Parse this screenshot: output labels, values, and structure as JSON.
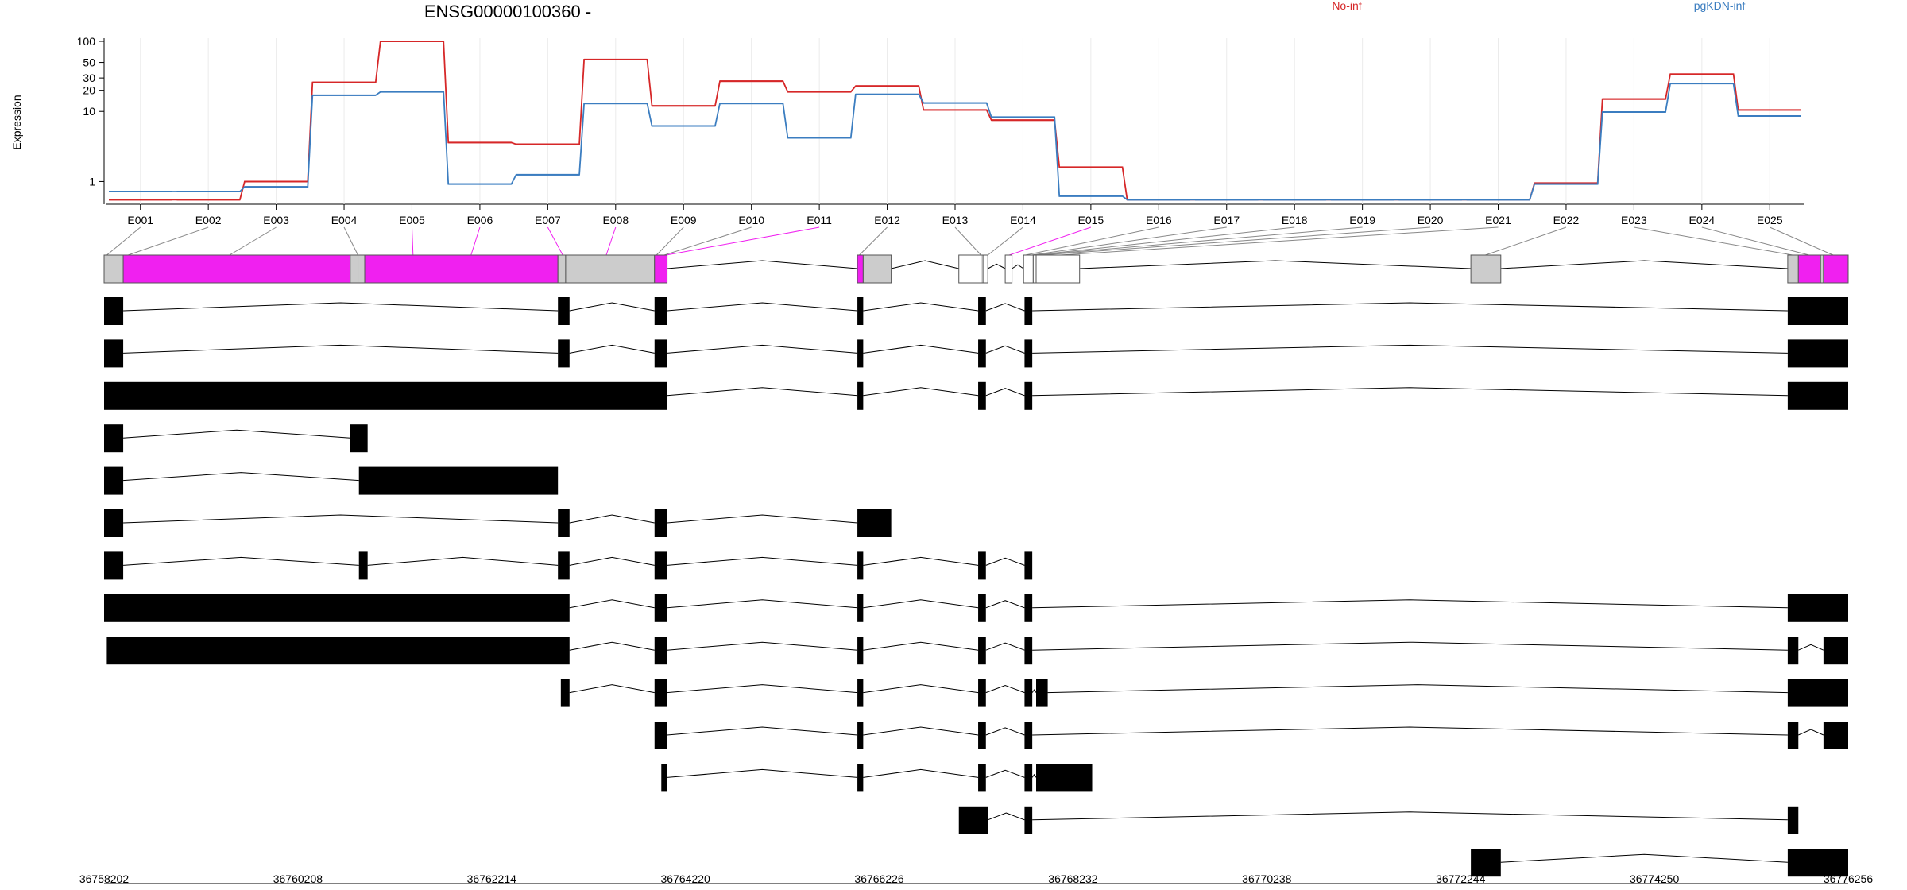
{
  "chart_data": {
    "type": "line",
    "title": "ENSG00000100360 -",
    "ylabel": "Expression",
    "y_scale": "log",
    "yticks": [
      "1",
      "10",
      "20",
      "30",
      "50",
      "100"
    ],
    "categories": [
      "E001",
      "E002",
      "E003",
      "E004",
      "E005",
      "E006",
      "E007",
      "E008",
      "E009",
      "E010",
      "E011",
      "E012",
      "E013",
      "E014",
      "E015",
      "E016",
      "E017",
      "E018",
      "E019",
      "E020",
      "E021",
      "E022",
      "E023",
      "E024",
      "E025"
    ],
    "series": [
      {
        "name": "No-inf",
        "color": "#d62728",
        "values": [
          0.55,
          0.55,
          1.0,
          26,
          100,
          3.6,
          3.4,
          55,
          12,
          27,
          19,
          23,
          10.5,
          7.5,
          1.6,
          0.55,
          0.55,
          0.55,
          0.55,
          0.55,
          0.55,
          0.95,
          15,
          34,
          10.5
        ]
      },
      {
        "name": "pgKDN-inf",
        "color": "#3b7dc0",
        "values": [
          0.72,
          0.72,
          0.84,
          17,
          19,
          0.92,
          1.25,
          13,
          6.2,
          13,
          4.2,
          17.5,
          13.2,
          8.3,
          0.62,
          0.55,
          0.55,
          0.55,
          0.55,
          0.55,
          0.55,
          0.92,
          9.8,
          25,
          8.6
        ]
      }
    ],
    "highlight_color": "#f020f0",
    "genomic_axis": {
      "start": 36758202,
      "end": 36776256,
      "tick_labels": [
        "36758202",
        "36760208",
        "36762214",
        "36764220",
        "36766226",
        "36768232",
        "36770238",
        "36772244",
        "36774250",
        "36776256"
      ]
    },
    "exons": [
      {
        "start": 36758202,
        "end": 36758400,
        "sig": false
      },
      {
        "start": 36758400,
        "end": 36760750,
        "sig": true
      },
      {
        "start": 36760750,
        "end": 36760830,
        "sig": false
      },
      {
        "start": 36760830,
        "end": 36760900,
        "sig": false
      },
      {
        "start": 36760900,
        "end": 36762900,
        "sig": true
      },
      {
        "start": 36762900,
        "end": 36762980,
        "sig": false
      },
      {
        "start": 36762980,
        "end": 36763900,
        "sig": false
      },
      {
        "start": 36763900,
        "end": 36764030,
        "sig": true
      },
      {
        "start": 36766000,
        "end": 36766060,
        "sig": true
      },
      {
        "start": 36766060,
        "end": 36766350,
        "sig": false
      },
      {
        "start": 36767050,
        "end": 36767280,
        "sig": false
      },
      {
        "start": 36767280,
        "end": 36767300,
        "sig": false
      },
      {
        "start": 36767300,
        "end": 36767350,
        "sig": false
      },
      {
        "start": 36767530,
        "end": 36767600,
        "sig": false
      },
      {
        "start": 36767720,
        "end": 36767820,
        "sig": false
      },
      {
        "start": 36767820,
        "end": 36767850,
        "sig": false
      },
      {
        "start": 36767850,
        "end": 36768300,
        "sig": false
      },
      {
        "start": 36772350,
        "end": 36772660,
        "sig": false
      },
      {
        "start": 36775630,
        "end": 36775740,
        "sig": false
      },
      {
        "start": 36775740,
        "end": 36775970,
        "sig": true
      },
      {
        "start": 36775970,
        "end": 36776000,
        "sig": false
      },
      {
        "start": 36776000,
        "end": 36776256,
        "sig": true
      }
    ],
    "transcripts": [
      [
        [
          36758202,
          36758400
        ],
        [
          36762900,
          36763020
        ],
        [
          36763900,
          36764030
        ],
        [
          36766000,
          36766060
        ],
        [
          36767250,
          36767330
        ],
        [
          36767730,
          36767810
        ],
        [
          36775630,
          36776256
        ]
      ],
      [
        [
          36758202,
          36758400
        ],
        [
          36762900,
          36763020
        ],
        [
          36763900,
          36764030
        ],
        [
          36766000,
          36766060
        ],
        [
          36767250,
          36767330
        ],
        [
          36767730,
          36767810
        ],
        [
          36775630,
          36776256
        ]
      ],
      [
        [
          36758202,
          36764030
        ],
        [
          36766000,
          36766060
        ],
        [
          36767250,
          36767330
        ],
        [
          36767730,
          36767810
        ],
        [
          36775630,
          36776256
        ]
      ],
      [
        [
          36758202,
          36758400
        ],
        [
          36760750,
          36760930
        ]
      ],
      [
        [
          36758202,
          36758400
        ],
        [
          36760840,
          36762900
        ]
      ],
      [
        [
          36758202,
          36758400
        ],
        [
          36762900,
          36763020
        ],
        [
          36763900,
          36764030
        ],
        [
          36766000,
          36766350
        ]
      ],
      [
        [
          36758202,
          36758400
        ],
        [
          36760840,
          36760930
        ],
        [
          36762900,
          36763020
        ],
        [
          36763900,
          36764030
        ],
        [
          36766000,
          36766060
        ],
        [
          36767250,
          36767330
        ],
        [
          36767730,
          36767810
        ]
      ],
      [
        [
          36758202,
          36763020
        ],
        [
          36763900,
          36764030
        ],
        [
          36766000,
          36766060
        ],
        [
          36767250,
          36767330
        ],
        [
          36767730,
          36767810
        ],
        [
          36775630,
          36776256
        ]
      ],
      [
        [
          36758230,
          36763020
        ],
        [
          36763900,
          36764030
        ],
        [
          36766000,
          36766060
        ],
        [
          36767250,
          36767330
        ],
        [
          36767730,
          36767810
        ],
        [
          36775630,
          36775740
        ],
        [
          36776000,
          36776256
        ]
      ],
      [
        [
          36762930,
          36763020
        ],
        [
          36763900,
          36764030
        ],
        [
          36766000,
          36766060
        ],
        [
          36767250,
          36767330
        ],
        [
          36767730,
          36767810
        ],
        [
          36767850,
          36767970
        ],
        [
          36775630,
          36776256
        ]
      ],
      [
        [
          36763900,
          36764030
        ],
        [
          36766000,
          36766060
        ],
        [
          36767250,
          36767330
        ],
        [
          36767730,
          36767810
        ],
        [
          36775630,
          36775740
        ],
        [
          36776000,
          36776256
        ]
      ],
      [
        [
          36763970,
          36764030
        ],
        [
          36766000,
          36766060
        ],
        [
          36767250,
          36767330
        ],
        [
          36767730,
          36767810
        ],
        [
          36767850,
          36768430
        ]
      ],
      [
        [
          36767050,
          36767350
        ],
        [
          36767730,
          36767810
        ],
        [
          36775630,
          36775740
        ]
      ],
      [
        [
          36772350,
          36772660
        ],
        [
          36775630,
          36776256
        ]
      ]
    ]
  }
}
